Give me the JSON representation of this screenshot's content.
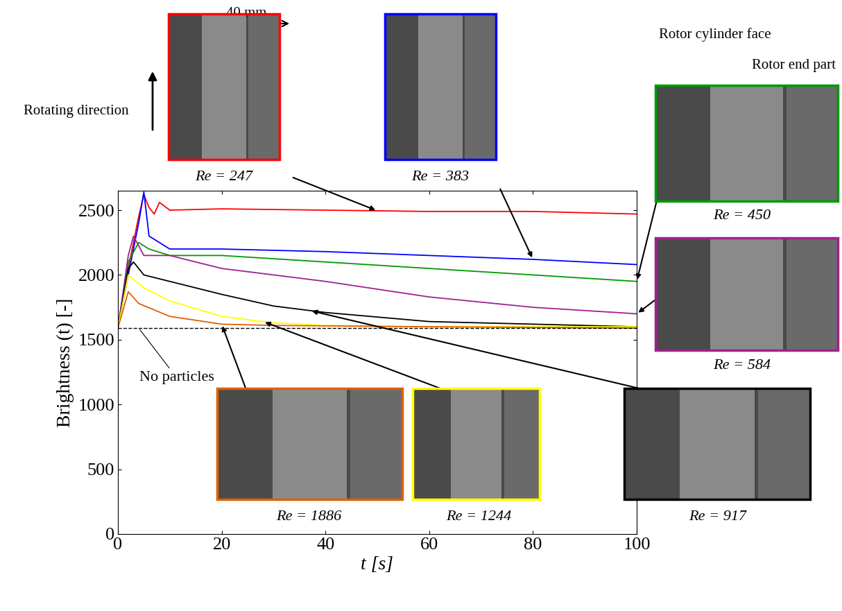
{
  "chart_data": {
    "type": "line",
    "xlabel": "t [s]",
    "ylabel": "Brightness (t) [-]",
    "xlim": [
      0,
      100
    ],
    "ylim": [
      0,
      2650
    ],
    "xticks": [
      0,
      20,
      40,
      60,
      80,
      100
    ],
    "yticks": [
      0,
      500,
      1000,
      1500,
      2000,
      2500
    ],
    "no_particles": {
      "label": "No particles",
      "value": 1590
    },
    "annotations": [
      "40 mm",
      "Rotating direction",
      "Rotor cylinder face",
      "Rotor end part"
    ],
    "series": [
      {
        "name": "Re = 247",
        "color": "#ff0000",
        "x": [
          0,
          2,
          4,
          5,
          6,
          7,
          8,
          10,
          20,
          40,
          60,
          80,
          100
        ],
        "values": [
          1590,
          2050,
          2450,
          2620,
          2520,
          2470,
          2560,
          2500,
          2510,
          2500,
          2490,
          2490,
          2470
        ]
      },
      {
        "name": "Re = 383",
        "color": "#0000ff",
        "x": [
          0,
          2,
          4,
          5,
          6,
          10,
          20,
          40,
          60,
          80,
          100
        ],
        "values": [
          1590,
          2000,
          2400,
          2640,
          2300,
          2200,
          2200,
          2180,
          2150,
          2120,
          2080
        ]
      },
      {
        "name": "Re = 450",
        "color": "#009a00",
        "x": [
          0,
          2,
          4,
          6,
          10,
          20,
          40,
          60,
          80,
          100
        ],
        "values": [
          1590,
          2100,
          2250,
          2200,
          2150,
          2150,
          2100,
          2050,
          2000,
          1950
        ]
      },
      {
        "name": "Re = 584",
        "color": "#a0208f",
        "x": [
          0,
          2,
          3,
          5,
          10,
          20,
          40,
          60,
          80,
          100
        ],
        "values": [
          1590,
          2150,
          2300,
          2150,
          2150,
          2050,
          1950,
          1830,
          1750,
          1700
        ]
      },
      {
        "name": "Re = 917",
        "color": "#000000",
        "x": [
          0,
          2,
          3,
          5,
          10,
          20,
          30,
          40,
          60,
          80,
          100
        ],
        "values": [
          1590,
          2050,
          2100,
          2000,
          1950,
          1850,
          1760,
          1710,
          1640,
          1620,
          1600
        ]
      },
      {
        "name": "Re = 1244",
        "color": "#ffff00",
        "x": [
          0,
          2,
          5,
          10,
          20,
          30,
          40,
          60,
          100
        ],
        "values": [
          1590,
          2000,
          1900,
          1800,
          1680,
          1630,
          1610,
          1600,
          1600
        ]
      },
      {
        "name": "Re = 1886",
        "color": "#e06000",
        "x": [
          0,
          2,
          4,
          10,
          20,
          30,
          60,
          100
        ],
        "values": [
          1590,
          1870,
          1780,
          1680,
          1620,
          1610,
          1600,
          1590
        ]
      }
    ]
  }
}
